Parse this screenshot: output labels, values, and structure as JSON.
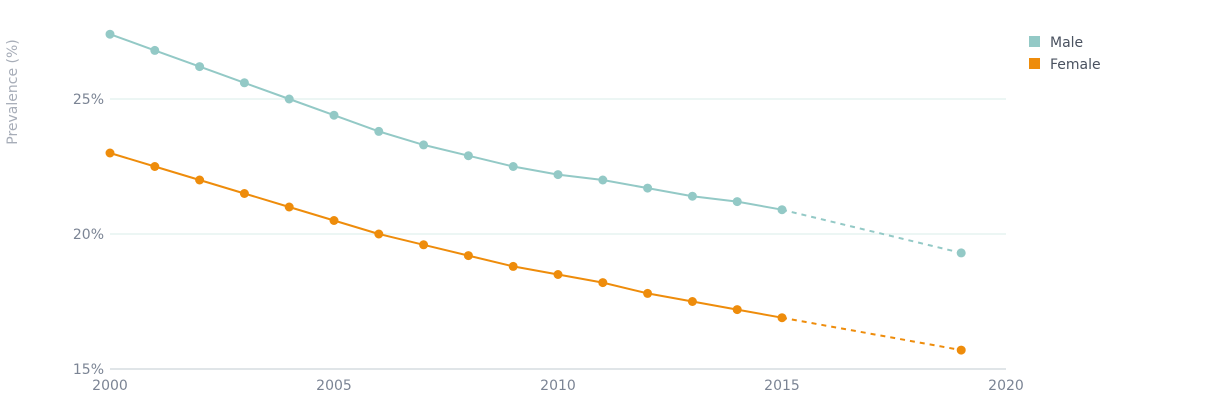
{
  "chart_data": {
    "type": "line",
    "ylabel": "Prevalence (%)",
    "xlim": [
      2000,
      2020
    ],
    "ylim": [
      15,
      28
    ],
    "x_ticks": [
      2000,
      2005,
      2010,
      2015,
      2020
    ],
    "x_tick_labels": [
      "2000",
      "2005",
      "2010",
      "2015",
      "2020"
    ],
    "y_ticks": [
      15,
      20,
      25
    ],
    "y_tick_labels": [
      "15%",
      "20%",
      "25%"
    ],
    "grid": "horizontal",
    "legend_position": "top-right",
    "series": [
      {
        "name": "Male",
        "color": "#93c9c6",
        "x": [
          2000,
          2001,
          2002,
          2003,
          2004,
          2005,
          2006,
          2007,
          2008,
          2009,
          2010,
          2011,
          2012,
          2013,
          2014,
          2015
        ],
        "values": [
          27.4,
          26.8,
          26.2,
          25.6,
          25.0,
          24.4,
          23.8,
          23.3,
          22.9,
          22.5,
          22.2,
          22.0,
          21.7,
          21.4,
          21.2,
          20.9
        ],
        "projection": {
          "x": [
            2015,
            2019
          ],
          "values": [
            20.9,
            19.3
          ]
        }
      },
      {
        "name": "Female",
        "color": "#ee8c0b",
        "x": [
          2000,
          2001,
          2002,
          2003,
          2004,
          2005,
          2006,
          2007,
          2008,
          2009,
          2010,
          2011,
          2012,
          2013,
          2014,
          2015
        ],
        "values": [
          23.0,
          22.5,
          22.0,
          21.5,
          21.0,
          20.5,
          20.0,
          19.6,
          19.2,
          18.8,
          18.5,
          18.2,
          17.8,
          17.5,
          17.2,
          16.9
        ],
        "projection": {
          "x": [
            2015,
            2019
          ],
          "values": [
            16.9,
            15.7
          ]
        }
      }
    ]
  }
}
